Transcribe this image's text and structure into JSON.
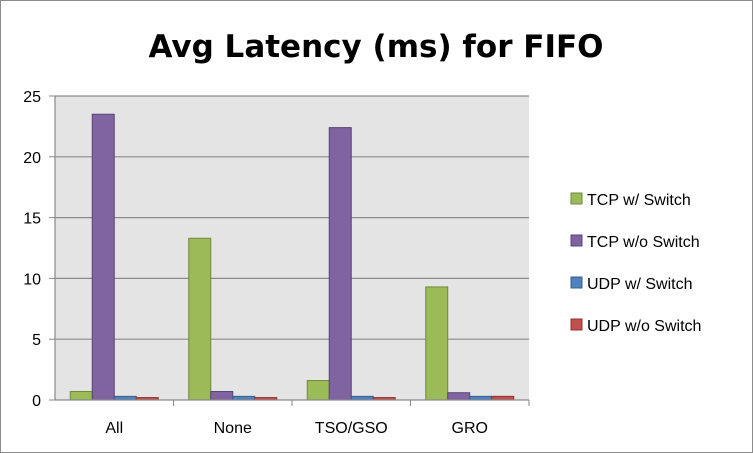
{
  "chart_data": {
    "type": "bar",
    "title": "Avg Latency (ms) for FIFO",
    "xlabel": "",
    "ylabel": "",
    "categories": [
      "All",
      "None",
      "TSO/GSO",
      "GRO"
    ],
    "ylim": [
      0,
      25
    ],
    "yticks": [
      0,
      5,
      10,
      15,
      20,
      25
    ],
    "grid": true,
    "legend_position": "right",
    "plot_background": "#e4e4e4",
    "series": [
      {
        "name": "TCP w/ Switch",
        "color": "#9bbb59",
        "stroke": "#6f8a3a",
        "values": [
          0.7,
          13.3,
          1.6,
          9.3
        ]
      },
      {
        "name": "TCP w/o Switch",
        "color": "#8064a2",
        "stroke": "#5a4576",
        "values": [
          23.5,
          0.7,
          22.4,
          0.6
        ]
      },
      {
        "name": "UDP w/ Switch",
        "color": "#4f81bd",
        "stroke": "#365f8f",
        "values": [
          0.3,
          0.3,
          0.3,
          0.3
        ]
      },
      {
        "name": "UDP w/o Switch",
        "color": "#c0504d",
        "stroke": "#8e3532",
        "values": [
          0.2,
          0.2,
          0.2,
          0.3
        ]
      }
    ]
  }
}
